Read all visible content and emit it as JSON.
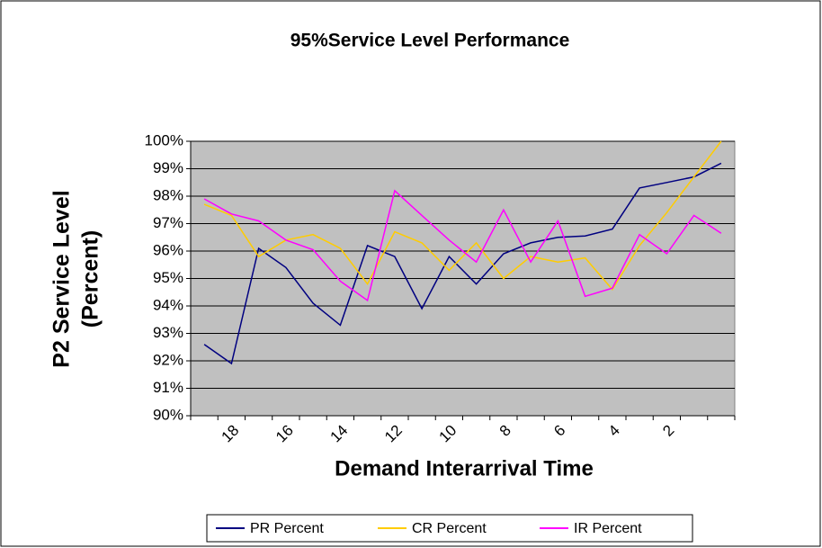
{
  "chart_data": {
    "type": "line",
    "title": "95%Service Level Performance",
    "y_label": [
      "P2 Service Level",
      "(Percent)"
    ],
    "x_label": "Demand Interarrival Time",
    "categories": [
      null,
      "18",
      null,
      "16",
      null,
      "14",
      null,
      "12",
      null,
      "10",
      null,
      "8",
      null,
      "6",
      null,
      "4",
      null,
      "2",
      null,
      null
    ],
    "series": [
      {
        "name": "PR Percent",
        "color": "#000080",
        "values": [
          92.6,
          91.9,
          96.1,
          95.4,
          94.1,
          93.3,
          96.2,
          95.8,
          93.9,
          95.8,
          94.8,
          95.9,
          96.3,
          96.5,
          96.55,
          96.8,
          98.3,
          98.5,
          98.7,
          99.2
        ]
      },
      {
        "name": "CR Percent",
        "color": "#ffcc00",
        "values": [
          97.7,
          97.3,
          95.8,
          96.4,
          96.6,
          96.1,
          94.8,
          96.7,
          96.3,
          95.3,
          96.3,
          95.0,
          95.8,
          95.6,
          95.75,
          94.6,
          96.2,
          97.4,
          98.7,
          100.0
        ]
      },
      {
        "name": "IR Percent",
        "color": "#ff00ff",
        "values": [
          97.9,
          97.35,
          97.1,
          96.4,
          96.05,
          94.9,
          94.2,
          98.2,
          97.3,
          96.4,
          95.6,
          97.5,
          95.6,
          97.1,
          94.35,
          94.65,
          96.6,
          95.9,
          97.3,
          96.65
        ]
      }
    ],
    "ylim": [
      90,
      100
    ],
    "yticks": [
      {
        "value": 90,
        "label": "90%"
      },
      {
        "value": 91,
        "label": "91%"
      },
      {
        "value": 92,
        "label": "92%"
      },
      {
        "value": 93,
        "label": "93%"
      },
      {
        "value": 94,
        "label": "94%"
      },
      {
        "value": 95,
        "label": "95%"
      },
      {
        "value": 96,
        "label": "96%"
      },
      {
        "value": 97,
        "label": "97%"
      },
      {
        "value": 98,
        "label": "98%"
      },
      {
        "value": 99,
        "label": "99%"
      },
      {
        "value": 100,
        "label": "100%"
      }
    ],
    "grid": true,
    "legend": "bottom"
  }
}
